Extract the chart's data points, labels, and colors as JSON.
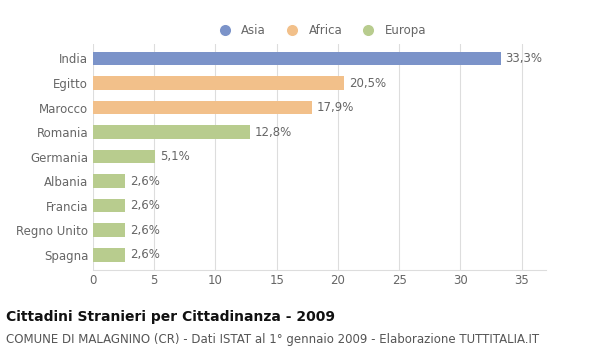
{
  "categories": [
    "India",
    "Egitto",
    "Marocco",
    "Romania",
    "Germania",
    "Albania",
    "Francia",
    "Regno Unito",
    "Spagna"
  ],
  "values": [
    33.3,
    20.5,
    17.9,
    12.8,
    5.1,
    2.6,
    2.6,
    2.6,
    2.6
  ],
  "labels": [
    "33,3%",
    "20,5%",
    "17,9%",
    "12,8%",
    "5,1%",
    "2,6%",
    "2,6%",
    "2,6%",
    "2,6%"
  ],
  "colors": [
    "#7b93c9",
    "#f2c08a",
    "#f2c08a",
    "#b8cc8e",
    "#b8cc8e",
    "#b8cc8e",
    "#b8cc8e",
    "#b8cc8e",
    "#b8cc8e"
  ],
  "legend_labels": [
    "Asia",
    "Africa",
    "Europa"
  ],
  "legend_colors": [
    "#7b93c9",
    "#f2c08a",
    "#b8cc8e"
  ],
  "xlim": [
    0,
    37
  ],
  "xticks": [
    0,
    5,
    10,
    15,
    20,
    25,
    30,
    35
  ],
  "title": "Cittadini Stranieri per Cittadinanza - 2009",
  "subtitle": "COMUNE DI MALAGNINO (CR) - Dati ISTAT al 1° gennaio 2009 - Elaborazione TUTTITALIA.IT",
  "bg_color": "#ffffff",
  "grid_color": "#dddddd",
  "bar_height": 0.55,
  "title_fontsize": 10,
  "subtitle_fontsize": 8.5,
  "tick_fontsize": 8.5,
  "label_fontsize": 8.5
}
